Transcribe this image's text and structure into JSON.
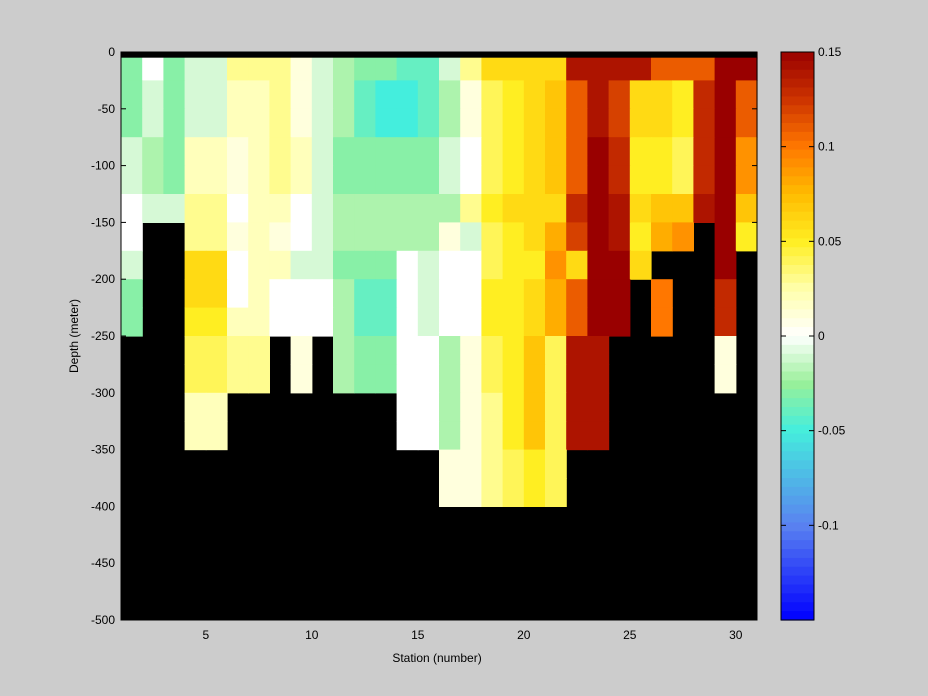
{
  "chart_data": {
    "type": "heatmap",
    "title": "",
    "xlabel": "Station (number)",
    "ylabel": "Depth (meter)",
    "xlim": [
      1,
      31
    ],
    "ylim": [
      -500,
      0
    ],
    "x_ticks": [
      5,
      10,
      15,
      20,
      25,
      30
    ],
    "y_ticks": [
      0,
      -50,
      -100,
      -150,
      -200,
      -250,
      -300,
      -350,
      -400,
      -450,
      -500
    ],
    "stations": [
      1,
      2,
      3,
      4,
      5,
      6,
      7,
      8,
      9,
      10,
      11,
      12,
      13,
      14,
      15,
      16,
      17,
      18,
      19,
      20,
      21,
      22,
      23,
      24,
      25,
      26,
      27,
      28,
      29,
      30
    ],
    "depth_bin_edges": [
      0,
      -5,
      -25,
      -50,
      -75,
      -100,
      -125,
      -150,
      -175,
      -200,
      -225,
      -250,
      -275,
      -300,
      -325,
      -350,
      -375,
      -400
    ],
    "values": [
      [
        -0.03,
        0.0,
        -0.03,
        -0.01,
        -0.01,
        0.03,
        0.03,
        0.03,
        0.01,
        -0.01,
        -0.02,
        -0.03,
        -0.03,
        -0.04,
        -0.04,
        -0.01,
        0.03,
        0.06,
        0.06,
        0.06,
        0.06,
        0.14,
        0.14,
        0.14,
        0.14,
        0.11,
        0.11,
        0.11,
        0.16,
        0.16
      ],
      [
        -0.03,
        0.0,
        -0.03,
        -0.01,
        -0.01,
        0.03,
        0.03,
        0.03,
        0.01,
        -0.01,
        -0.02,
        -0.03,
        -0.03,
        -0.04,
        -0.04,
        -0.01,
        0.03,
        0.06,
        0.06,
        0.06,
        0.06,
        0.14,
        0.14,
        0.14,
        0.14,
        0.11,
        0.11,
        0.11,
        0.16,
        0.16
      ],
      [
        -0.03,
        -0.01,
        -0.03,
        -0.01,
        -0.01,
        0.02,
        0.02,
        0.03,
        0.01,
        -0.01,
        -0.02,
        -0.04,
        -0.05,
        -0.05,
        -0.04,
        -0.02,
        0.01,
        0.04,
        0.05,
        0.06,
        0.07,
        0.11,
        0.14,
        0.12,
        0.06,
        0.06,
        0.05,
        0.13,
        0.15,
        0.11
      ],
      [
        -0.03,
        -0.01,
        -0.03,
        -0.01,
        -0.01,
        0.02,
        0.02,
        0.03,
        0.01,
        -0.01,
        -0.02,
        -0.04,
        -0.05,
        -0.05,
        -0.04,
        -0.02,
        0.01,
        0.04,
        0.05,
        0.06,
        0.07,
        0.11,
        0.14,
        0.12,
        0.06,
        0.06,
        0.05,
        0.13,
        0.15,
        0.11
      ],
      [
        -0.01,
        -0.02,
        -0.03,
        0.02,
        0.02,
        0.01,
        0.02,
        0.03,
        0.02,
        -0.01,
        -0.03,
        -0.03,
        -0.03,
        -0.03,
        -0.03,
        -0.01,
        0.0,
        0.04,
        0.05,
        0.06,
        0.07,
        0.11,
        0.15,
        0.13,
        0.05,
        0.05,
        0.04,
        0.13,
        0.15,
        0.09
      ],
      [
        -0.01,
        -0.02,
        -0.03,
        0.02,
        0.02,
        0.01,
        0.02,
        0.03,
        0.02,
        -0.01,
        -0.03,
        -0.03,
        -0.03,
        -0.03,
        -0.03,
        -0.01,
        0.0,
        0.04,
        0.05,
        0.06,
        0.07,
        0.11,
        0.15,
        0.13,
        0.05,
        0.05,
        0.04,
        0.13,
        0.15,
        0.09
      ],
      [
        0.0,
        -0.01,
        -0.01,
        0.03,
        0.03,
        0.0,
        0.02,
        0.02,
        0.0,
        -0.01,
        -0.02,
        -0.02,
        -0.02,
        -0.02,
        -0.02,
        -0.02,
        0.03,
        0.05,
        0.06,
        0.06,
        0.06,
        0.13,
        0.15,
        0.14,
        0.06,
        0.07,
        0.07,
        0.14,
        0.16,
        0.07
      ],
      [
        0.0,
        null,
        null,
        0.03,
        0.03,
        0.01,
        0.02,
        0.01,
        0.0,
        -0.01,
        -0.02,
        -0.02,
        -0.02,
        -0.02,
        -0.02,
        0.01,
        -0.01,
        0.04,
        0.05,
        0.06,
        0.08,
        0.12,
        0.15,
        0.14,
        0.05,
        0.08,
        0.09,
        null,
        0.16,
        0.05
      ],
      [
        -0.01,
        null,
        null,
        0.06,
        0.06,
        0.0,
        0.02,
        0.02,
        -0.01,
        -0.01,
        -0.03,
        -0.03,
        -0.03,
        0.0,
        -0.01,
        0.0,
        0.0,
        0.04,
        0.05,
        0.05,
        0.09,
        0.06,
        0.15,
        0.15,
        0.06,
        null,
        null,
        null,
        0.15,
        null
      ],
      [
        -0.03,
        null,
        null,
        0.06,
        0.06,
        0.0,
        0.02,
        0.0,
        0.0,
        0.0,
        -0.02,
        -0.04,
        -0.04,
        0.0,
        -0.01,
        0.0,
        0.0,
        0.05,
        0.05,
        0.06,
        0.08,
        0.11,
        0.15,
        0.15,
        null,
        0.1,
        null,
        null,
        0.13,
        null
      ],
      [
        -0.03,
        null,
        null,
        0.05,
        0.05,
        0.02,
        0.02,
        0.0,
        0.0,
        0.0,
        -0.02,
        -0.04,
        -0.04,
        0.0,
        -0.01,
        0.0,
        0.0,
        0.05,
        0.05,
        0.06,
        0.08,
        0.11,
        0.15,
        0.15,
        null,
        0.1,
        null,
        null,
        0.13,
        null
      ],
      [
        null,
        null,
        null,
        0.04,
        0.04,
        0.03,
        0.03,
        null,
        0.01,
        null,
        -0.02,
        -0.03,
        -0.03,
        0.0,
        0.0,
        -0.02,
        0.01,
        0.04,
        0.05,
        0.07,
        0.04,
        0.14,
        0.14,
        null,
        null,
        null,
        null,
        null,
        0.01,
        null
      ],
      [
        null,
        null,
        null,
        0.04,
        0.04,
        0.03,
        0.03,
        null,
        0.01,
        null,
        -0.02,
        -0.03,
        -0.03,
        0.0,
        0.0,
        -0.02,
        0.01,
        0.04,
        0.05,
        0.07,
        0.04,
        0.14,
        0.14,
        null,
        null,
        null,
        null,
        null,
        0.01,
        null
      ],
      [
        null,
        null,
        null,
        0.02,
        0.02,
        null,
        null,
        null,
        null,
        null,
        null,
        null,
        null,
        0.0,
        0.0,
        -0.02,
        0.01,
        0.03,
        0.05,
        0.07,
        0.04,
        0.14,
        0.14,
        null,
        null,
        null,
        null,
        null,
        null,
        null
      ],
      [
        null,
        null,
        null,
        0.02,
        0.02,
        null,
        null,
        null,
        null,
        null,
        null,
        null,
        null,
        0.0,
        0.0,
        -0.02,
        0.01,
        0.03,
        0.05,
        0.07,
        0.04,
        0.14,
        0.14,
        null,
        null,
        null,
        null,
        null,
        null,
        null
      ],
      [
        null,
        null,
        null,
        null,
        null,
        null,
        null,
        null,
        null,
        null,
        null,
        null,
        null,
        null,
        null,
        0.01,
        0.01,
        0.03,
        0.04,
        0.05,
        0.04,
        null,
        null,
        null,
        null,
        null,
        null,
        null,
        null,
        null
      ],
      [
        null,
        null,
        null,
        null,
        null,
        null,
        null,
        null,
        null,
        null,
        null,
        null,
        null,
        null,
        null,
        0.01,
        0.01,
        0.03,
        0.04,
        0.05,
        0.04,
        null,
        null,
        null,
        null,
        null,
        null,
        null,
        null,
        null
      ]
    ],
    "no_data_color": "#000000",
    "colorbar": {
      "range": [
        -0.15,
        0.15
      ],
      "ticks": [
        0.15,
        0.1,
        0.05,
        0,
        -0.05,
        -0.1
      ],
      "tick_labels": [
        "0.15",
        "0.1",
        "0.05",
        "0",
        "-0.05",
        "-0.1"
      ],
      "stops": [
        {
          "v": -0.15,
          "color": "#0000ff"
        },
        {
          "v": -0.1,
          "color": "#5a82f0"
        },
        {
          "v": -0.05,
          "color": "#44eedd"
        },
        {
          "v": -0.025,
          "color": "#99f099"
        },
        {
          "v": 0.0,
          "color": "#ffffff"
        },
        {
          "v": 0.025,
          "color": "#ffffaa"
        },
        {
          "v": 0.05,
          "color": "#ffee22"
        },
        {
          "v": 0.075,
          "color": "#ffbb00"
        },
        {
          "v": 0.1,
          "color": "#ff7700"
        },
        {
          "v": 0.125,
          "color": "#cc3300"
        },
        {
          "v": 0.15,
          "color": "#990000"
        }
      ]
    },
    "grid": false,
    "legend": "colorbar-right"
  }
}
